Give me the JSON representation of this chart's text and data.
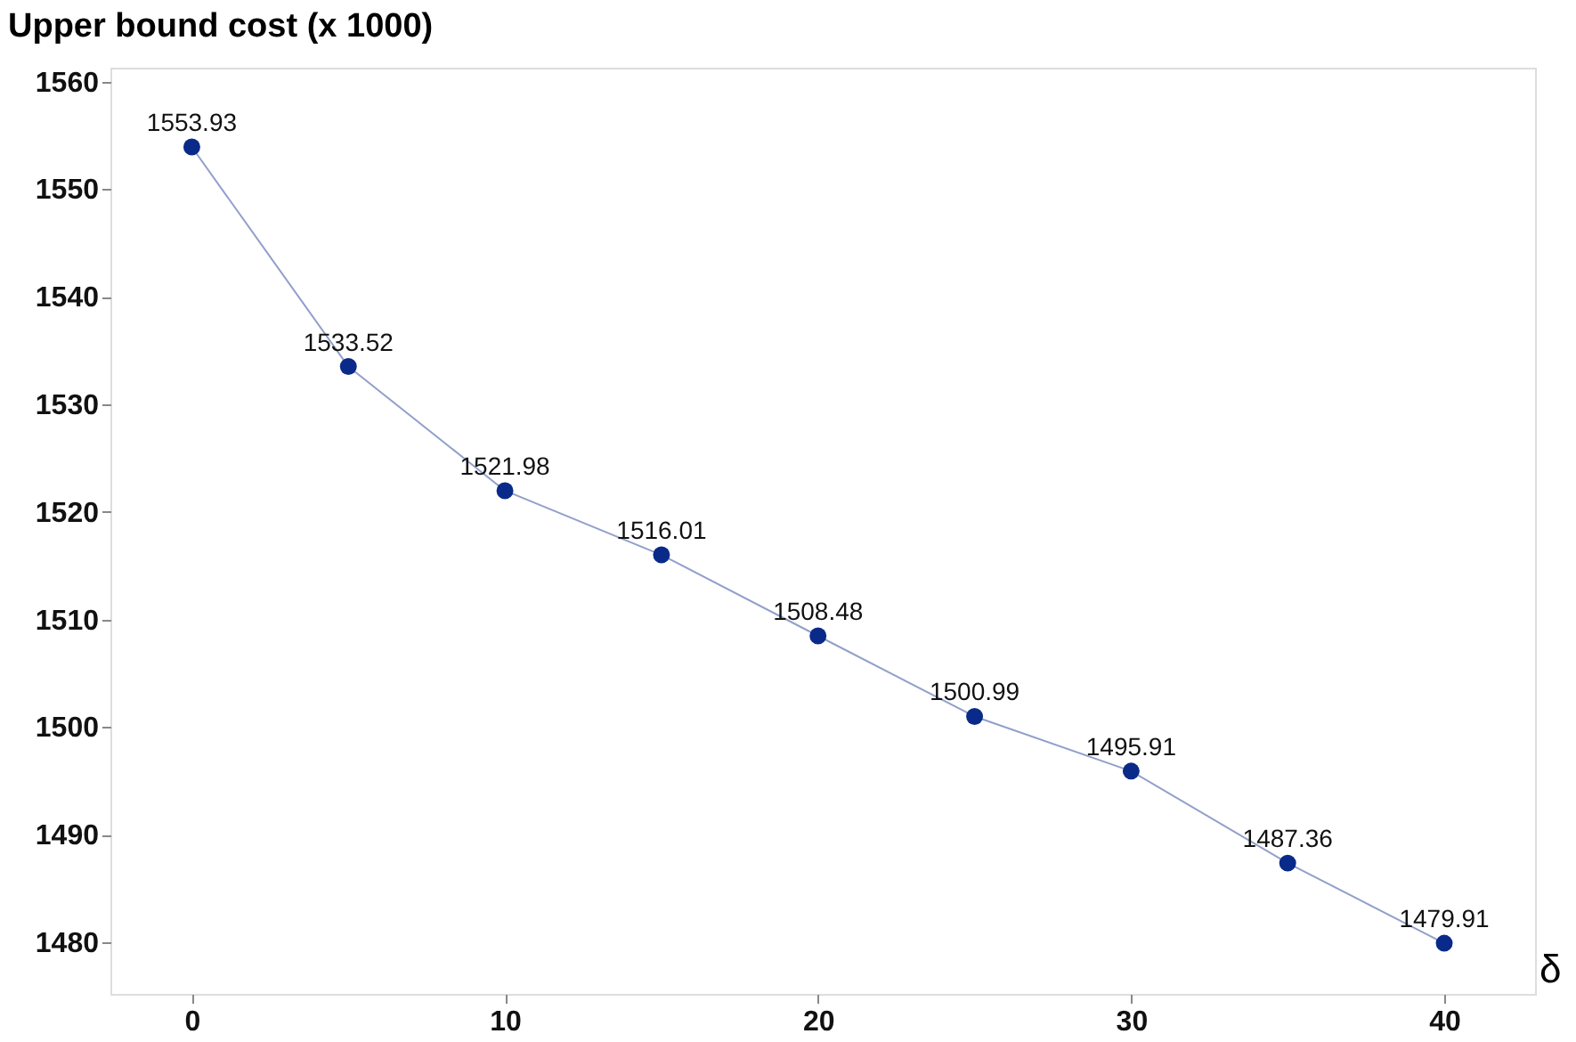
{
  "chart_data": {
    "type": "line",
    "ylabel": "Upper bound cost (x 1000)",
    "xlabel": "δ",
    "x": [
      0,
      5,
      10,
      15,
      20,
      25,
      30,
      35,
      40
    ],
    "series": [
      {
        "color": "#0a2a8a",
        "values": [
          1553.93,
          1533.52,
          1521.98,
          1516.01,
          1508.48,
          1500.99,
          1495.91,
          1487.36,
          1479.91
        ]
      }
    ],
    "xlim": [
      -2.6,
      42.9
    ],
    "xticks": [
      0,
      10,
      20,
      30,
      40
    ],
    "ylim": [
      1475.2,
      1561.3
    ],
    "yticks": [
      1480,
      1490,
      1500,
      1510,
      1520,
      1530,
      1540,
      1550,
      1560
    ],
    "data_labels": true,
    "grid": false,
    "marker": "circle",
    "line_style": "solid"
  }
}
